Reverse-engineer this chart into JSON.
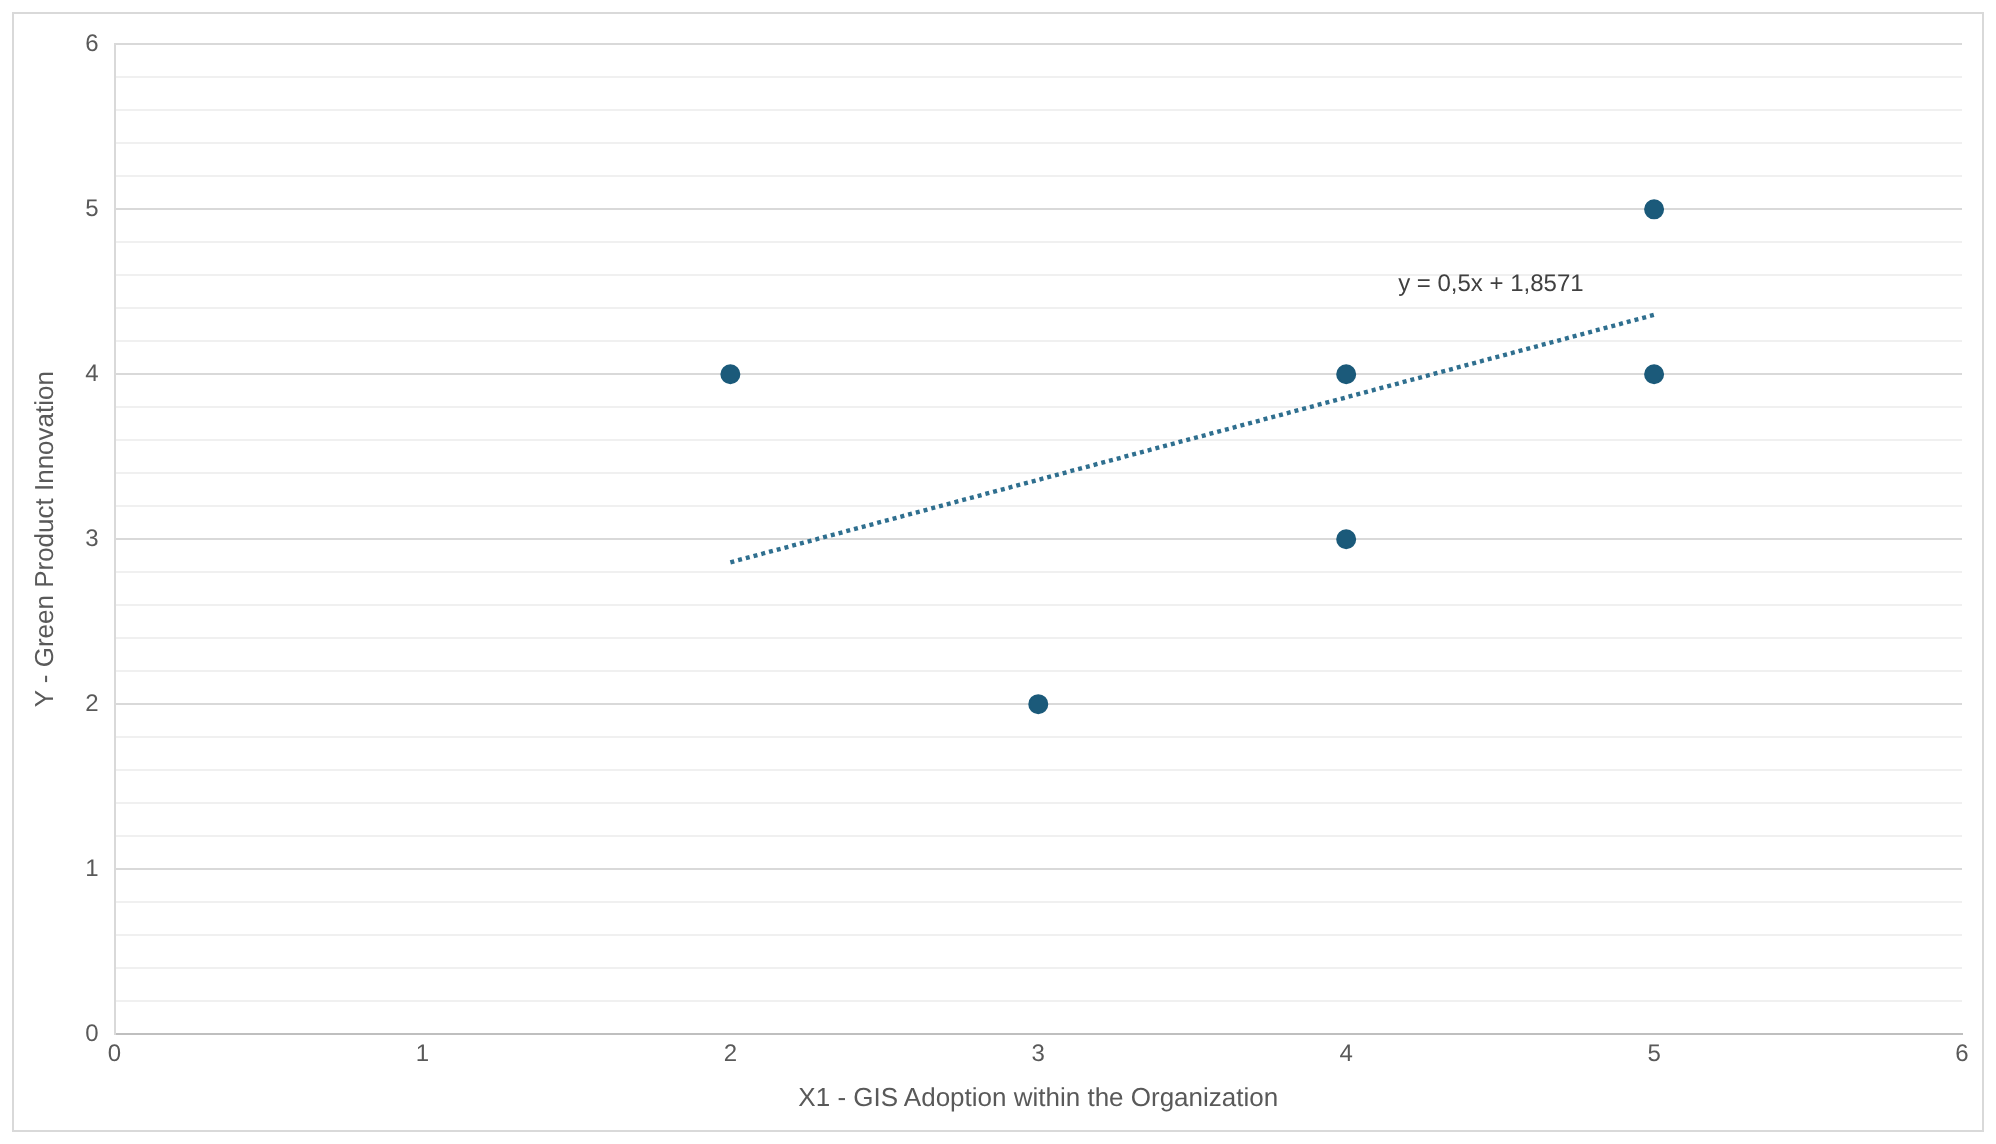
{
  "chart_data": {
    "type": "scatter",
    "xlabel": "X1 - GIS Adoption within the Organization",
    "ylabel": "Y - Green Product Innovation",
    "x": [
      2,
      3,
      4,
      4,
      5,
      5
    ],
    "series": [
      {
        "color": "#1b5a7a",
        "values": [
          4,
          2,
          4,
          3,
          5,
          4
        ],
        "marker": "circle"
      },
      {
        "type": "line",
        "color": "#2f6f8f",
        "x": [
          2,
          5
        ],
        "values": [
          2.86,
          4.36
        ],
        "line_style": "dotted",
        "marker": "none"
      }
    ],
    "annotations": [
      "y = 0,5x + 1,8571"
    ],
    "xlim": [
      0,
      6
    ],
    "xticks": [
      0,
      1,
      2,
      3,
      4,
      5,
      6
    ],
    "ylim": [
      0,
      6
    ],
    "yticks": [
      0,
      {
        "value": 0.2,
        "label": null
      },
      {
        "value": 0.4,
        "label": null
      },
      {
        "value": 0.6,
        "label": null
      },
      {
        "value": 0.8,
        "label": null
      },
      1,
      {
        "value": 1.2,
        "label": null
      },
      {
        "value": 1.4,
        "label": null
      },
      {
        "value": 1.6,
        "label": null
      },
      {
        "value": 1.8,
        "label": null
      },
      2,
      {
        "value": 2.2,
        "label": null
      },
      {
        "value": 2.4,
        "label": null
      },
      {
        "value": 2.6,
        "label": null
      },
      {
        "value": 2.8,
        "label": null
      },
      3,
      {
        "value": 3.2,
        "label": null
      },
      {
        "value": 3.4,
        "label": null
      },
      {
        "value": 3.6,
        "label": null
      },
      {
        "value": 3.8,
        "label": null
      },
      4,
      {
        "value": 4.2,
        "label": null
      },
      {
        "value": 4.4,
        "label": null
      },
      {
        "value": 4.6,
        "label": null
      },
      {
        "value": 4.8,
        "label": null
      },
      5,
      {
        "value": 5.2,
        "label": null
      },
      {
        "value": 5.4,
        "label": null
      },
      {
        "value": 5.6,
        "label": null
      },
      {
        "value": 5.8,
        "label": null
      },
      6
    ],
    "grid": "y",
    "legend": false
  }
}
